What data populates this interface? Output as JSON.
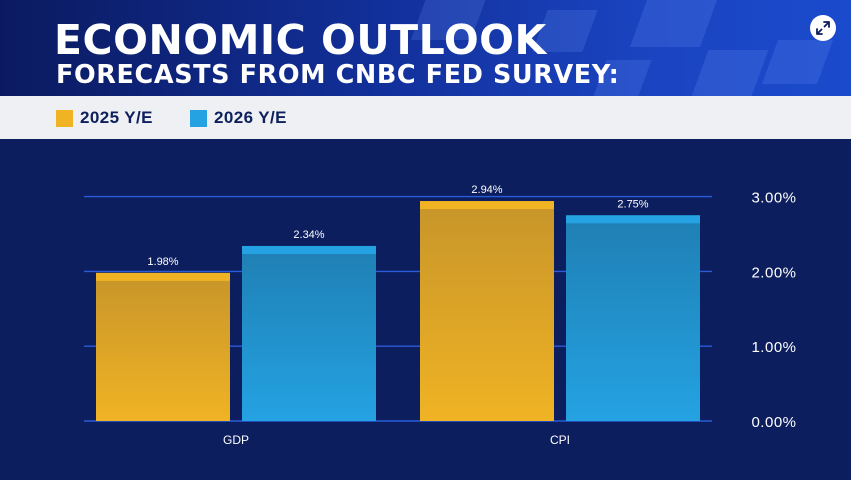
{
  "header": {
    "title": "ECONOMIC OUTLOOK",
    "subtitle": "FORECASTS FROM CNBC FED SURVEY:",
    "expand_icon": "expand-icon"
  },
  "legend": [
    {
      "label": "2025 Y/E",
      "color": "#f0b324"
    },
    {
      "label": "2026 Y/E",
      "color": "#24a2e2"
    }
  ],
  "chart_data": {
    "type": "bar",
    "title": "ECONOMIC OUTLOOK",
    "subtitle": "FORECASTS FROM CNBC FED SURVEY:",
    "categories": [
      "GDP",
      "CPI"
    ],
    "series": [
      {
        "name": "2025 Y/E",
        "values": [
          1.98,
          2.94
        ],
        "labels": [
          "1.98%",
          "2.94%"
        ],
        "color": "#f0b324"
      },
      {
        "name": "2026 Y/E",
        "values": [
          2.34,
          2.75
        ],
        "labels": [
          "2.34%",
          "2.75%"
        ],
        "color": "#24a2e2"
      }
    ],
    "y_ticks": [
      0,
      1,
      2,
      3
    ],
    "y_tick_labels": [
      "0.00%",
      "1.00%",
      "2.00%",
      "3.00%"
    ],
    "ylim": [
      0,
      3
    ],
    "xlabel": "",
    "ylabel": "",
    "grid": true,
    "y_axis_side": "right"
  }
}
